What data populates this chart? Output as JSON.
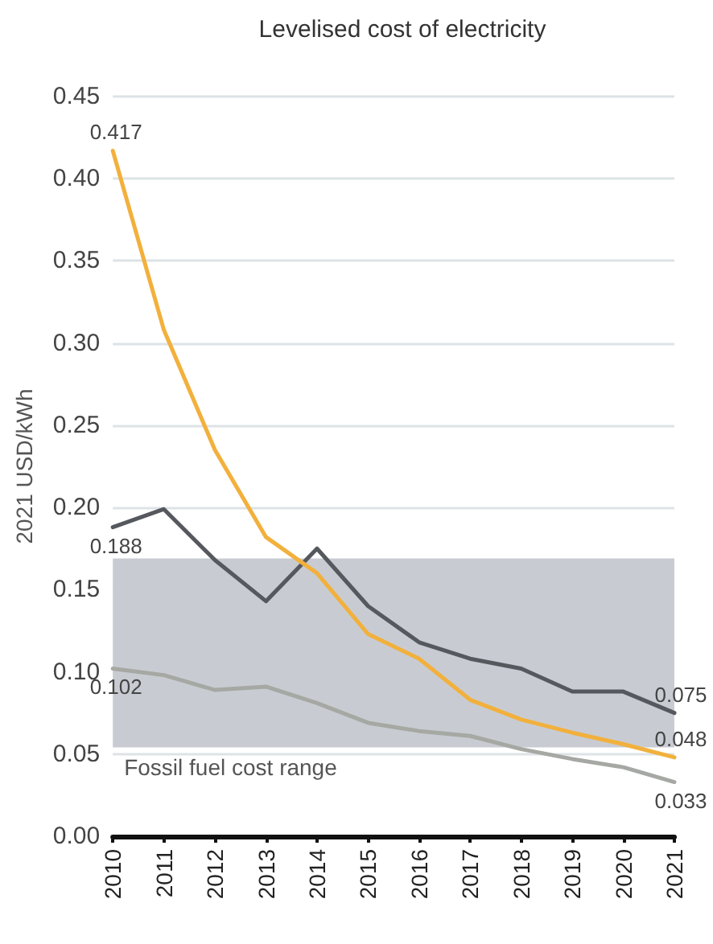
{
  "chart_data": {
    "type": "line",
    "title": "Levelised cost of electricity",
    "ylabel": "2021 USD/kWh",
    "categories": [
      "2010",
      "2011",
      "2012",
      "2013",
      "2014",
      "2015",
      "2016",
      "2017",
      "2018",
      "2019",
      "2020",
      "2021"
    ],
    "series": [
      {
        "color": "#f2b03c",
        "values": [
          0.417,
          0.308,
          0.235,
          0.182,
          0.16,
          0.123,
          0.108,
          0.083,
          0.071,
          0.063,
          0.056,
          0.048
        ],
        "value_labels": [
          "0.417",
          null,
          null,
          null,
          null,
          null,
          null,
          null,
          null,
          null,
          null,
          "0.048"
        ]
      },
      {
        "color": "#55595e",
        "values": [
          0.188,
          0.199,
          0.168,
          0.143,
          0.175,
          0.14,
          0.118,
          0.108,
          0.102,
          0.088,
          0.088,
          0.075
        ],
        "value_labels": [
          "0.188",
          null,
          null,
          null,
          null,
          null,
          null,
          null,
          null,
          null,
          null,
          "0.075"
        ]
      },
      {
        "color": "#a6a8a3",
        "values": [
          0.102,
          0.098,
          0.089,
          0.091,
          0.081,
          0.069,
          0.064,
          0.061,
          0.053,
          0.047,
          0.042,
          0.033
        ],
        "value_labels": [
          "0.102",
          null,
          null,
          null,
          null,
          null,
          null,
          null,
          null,
          null,
          null,
          "0.033"
        ]
      }
    ],
    "ylim": [
      0,
      0.45
    ],
    "yticks": [
      {
        "value": 0,
        "label": "0.00"
      },
      0.05,
      {
        "value": 0.1,
        "label": "0.10"
      },
      0.15,
      {
        "value": 0.2,
        "label": "0.20"
      },
      0.25,
      {
        "value": 0.3,
        "label": "0.30"
      },
      0.35,
      {
        "value": 0.4,
        "label": "0.40"
      },
      0.45
    ],
    "bands": [
      {
        "axis": "y",
        "from": 0.054,
        "to": 0.169,
        "label": "Fossil fuel cost range",
        "color": "#c8ccd2"
      }
    ],
    "grid": "y",
    "marker": "none",
    "line_style": "solid"
  }
}
